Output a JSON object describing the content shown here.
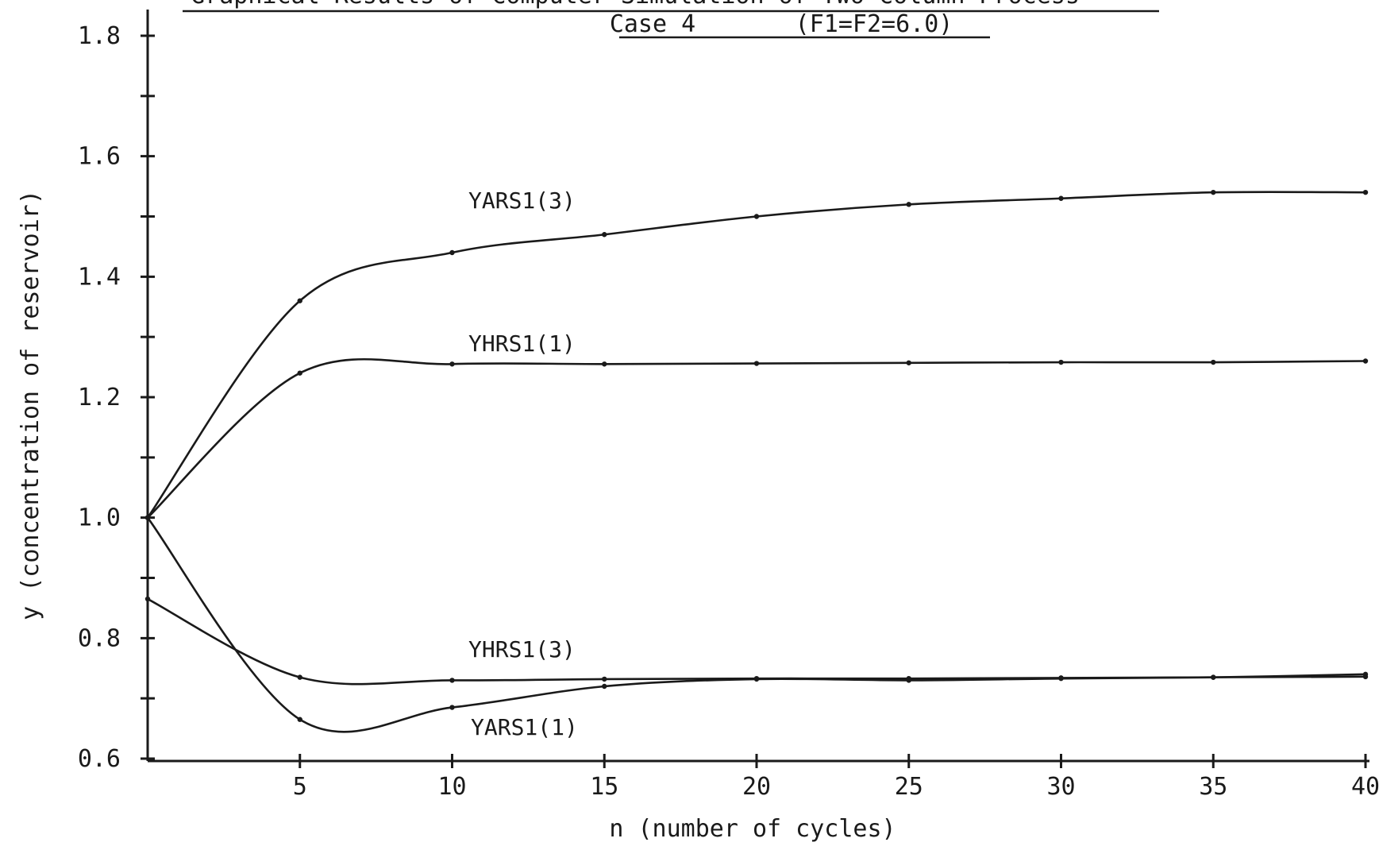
{
  "chart_data": {
    "type": "line",
    "title": "Graphical Results of Computer Simulation of Two-Column Process",
    "subtitle_case": "Case 4",
    "subtitle_params": "(F1=F2=6.0)",
    "xlabel": "n (number of cycles)",
    "ylabel": "y (concentration of reservoir)",
    "xlim": [
      0,
      40
    ],
    "ylim": [
      0.6,
      1.8
    ],
    "x_ticks": [
      5,
      10,
      15,
      20,
      25,
      30,
      35,
      40
    ],
    "x_tick_labels": [
      "5",
      "10",
      "15",
      "20",
      "25",
      "30",
      "35",
      "40"
    ],
    "y_ticks": [
      0.6,
      0.8,
      1.0,
      1.2,
      1.4,
      1.6,
      1.8
    ],
    "y_tick_labels": [
      "0.6",
      "0.8",
      "1.0",
      "1.2",
      "1.4",
      "1.6",
      "1.8"
    ],
    "grid": false,
    "series": [
      {
        "name": "YARS1(3)",
        "x": [
          0,
          5,
          10,
          15,
          20,
          25,
          30,
          35,
          40
        ],
        "y": [
          1.0,
          1.36,
          1.44,
          1.47,
          1.5,
          1.52,
          1.53,
          1.54,
          1.54
        ]
      },
      {
        "name": "YHRS1(1)",
        "x": [
          0,
          5,
          10,
          15,
          20,
          25,
          30,
          35,
          40
        ],
        "y": [
          1.0,
          1.24,
          1.255,
          1.255,
          1.256,
          1.257,
          1.258,
          1.258,
          1.26
        ]
      },
      {
        "name": "YHRS1(3)",
        "x": [
          0,
          5,
          10,
          15,
          20,
          25,
          30,
          35,
          40
        ],
        "y": [
          0.865,
          0.735,
          0.73,
          0.732,
          0.733,
          0.733,
          0.734,
          0.735,
          0.736
        ]
      },
      {
        "name": "YARS1(1)",
        "x": [
          0,
          5,
          10,
          15,
          20,
          25,
          30,
          35,
          40
        ],
        "y": [
          1.0,
          0.665,
          0.685,
          0.72,
          0.732,
          0.73,
          0.733,
          0.735,
          0.74
        ]
      }
    ]
  }
}
